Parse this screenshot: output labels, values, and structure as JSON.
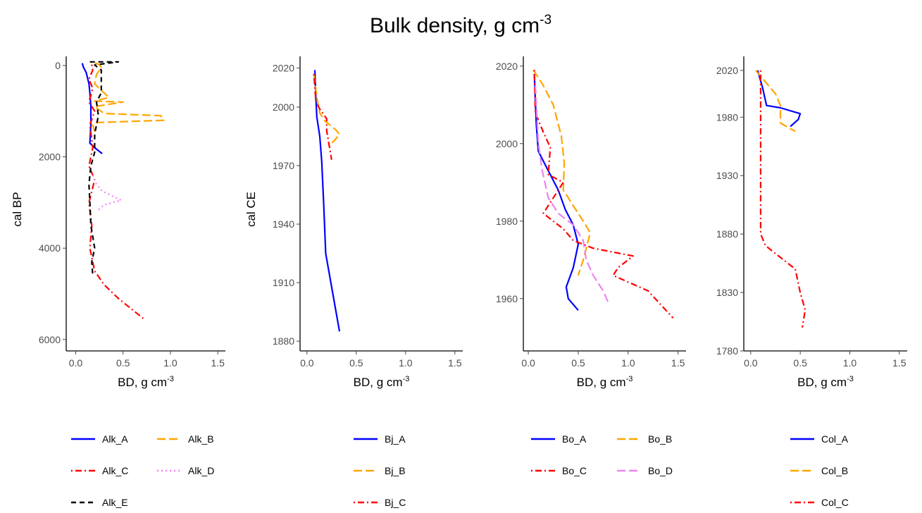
{
  "figure_title": {
    "main": "Bulk density, g cm",
    "sup": "-3"
  },
  "chart_data": [
    {
      "type": "line",
      "title": "",
      "xlabel": {
        "main": "BD, g cm",
        "sup": "-3"
      },
      "ylabel": "cal BP",
      "xlim": [
        -0.1,
        1.58
      ],
      "ylim": [
        -200,
        6250
      ],
      "y_reversed": true,
      "x_ticks": [
        0.0,
        0.5,
        1.0,
        1.5
      ],
      "x_tick_labels": [
        "0.0",
        "0.5",
        "1.0",
        "1.5"
      ],
      "y_ticks": [
        0,
        2000,
        4000,
        6000
      ],
      "y_tick_labels": [
        "0",
        "2000",
        "4000",
        "6000"
      ],
      "legend_columns": 2,
      "series": [
        {
          "name": "Alk_A",
          "color": "#0000ff",
          "dash": "solid",
          "points": [
            [
              0.07,
              -50
            ],
            [
              0.08,
              30
            ],
            [
              0.11,
              150
            ],
            [
              0.14,
              400
            ],
            [
              0.15,
              600
            ],
            [
              0.16,
              900
            ],
            [
              0.16,
              1300
            ],
            [
              0.15,
              1700
            ],
            [
              0.2,
              1800
            ],
            [
              0.28,
              1930
            ]
          ]
        },
        {
          "name": "Alk_B",
          "color": "#ffa500",
          "dash": "longdash",
          "points": [
            [
              0.2,
              -60
            ],
            [
              0.25,
              -20
            ],
            [
              0.27,
              40
            ],
            [
              0.22,
              200
            ],
            [
              0.2,
              400
            ],
            [
              0.35,
              700
            ],
            [
              0.2,
              780
            ],
            [
              0.5,
              800
            ],
            [
              0.2,
              900
            ],
            [
              0.3,
              1050
            ],
            [
              0.9,
              1100
            ],
            [
              0.93,
              1200
            ],
            [
              0.2,
              1250
            ],
            [
              0.18,
              1300
            ],
            [
              0.2,
              1450
            ]
          ]
        },
        {
          "name": "Alk_C",
          "color": "#ff0000",
          "dash": "dotdash",
          "points": [
            [
              0.17,
              -20
            ],
            [
              0.18,
              100
            ],
            [
              0.14,
              300
            ],
            [
              0.18,
              500
            ],
            [
              0.14,
              800
            ],
            [
              0.2,
              1000
            ],
            [
              0.15,
              1300
            ],
            [
              0.18,
              1800
            ],
            [
              0.14,
              2200
            ],
            [
              0.2,
              2500
            ],
            [
              0.14,
              3000
            ],
            [
              0.17,
              3500
            ],
            [
              0.15,
              4000
            ],
            [
              0.2,
              4500
            ],
            [
              0.3,
              4800
            ],
            [
              0.45,
              5100
            ],
            [
              0.6,
              5350
            ],
            [
              0.72,
              5550
            ]
          ]
        },
        {
          "name": "Alk_D",
          "color": "#ee82ee",
          "dash": "dotted",
          "points": [
            [
              0.18,
              2400
            ],
            [
              0.22,
              2600
            ],
            [
              0.28,
              2750
            ],
            [
              0.48,
              2950
            ],
            [
              0.3,
              3050
            ],
            [
              0.22,
              3200
            ]
          ]
        },
        {
          "name": "Alk_E",
          "color": "#000000",
          "dash": "dashed",
          "points": [
            [
              0.15,
              -80
            ],
            [
              0.45,
              -80
            ],
            [
              0.3,
              -40
            ],
            [
              0.2,
              -10
            ],
            [
              0.27,
              100
            ],
            [
              0.27,
              600
            ],
            [
              0.22,
              800
            ],
            [
              0.24,
              1100
            ],
            [
              0.2,
              1500
            ],
            [
              0.2,
              1900
            ],
            [
              0.16,
              2200
            ],
            [
              0.14,
              2600
            ],
            [
              0.15,
              3000
            ],
            [
              0.16,
              3500
            ],
            [
              0.2,
              4000
            ],
            [
              0.17,
              4300
            ],
            [
              0.18,
              4600
            ]
          ]
        }
      ]
    },
    {
      "type": "line",
      "title": "",
      "xlabel": {
        "main": "BD, g cm",
        "sup": "-3"
      },
      "ylabel": "cal CE",
      "xlim": [
        -0.07,
        1.58
      ],
      "ylim": [
        1875,
        2026
      ],
      "y_reversed": false,
      "x_ticks": [
        0.0,
        0.5,
        1.0,
        1.5
      ],
      "x_tick_labels": [
        "0.0",
        "0.5",
        "1.0",
        "1.5"
      ],
      "y_ticks": [
        1880,
        1910,
        1940,
        1970,
        2000,
        2020
      ],
      "y_tick_labels": [
        "1880",
        "1910",
        "1940",
        "1970",
        "2000",
        "2020"
      ],
      "legend_columns": 1,
      "series": [
        {
          "name": "Bj_A",
          "color": "#0000ff",
          "dash": "solid",
          "points": [
            [
              0.08,
              2019
            ],
            [
              0.09,
              2005
            ],
            [
              0.1,
              1995
            ],
            [
              0.13,
              1985
            ],
            [
              0.15,
              1972
            ],
            [
              0.17,
              1950
            ],
            [
              0.19,
              1925
            ],
            [
              0.26,
              1905
            ],
            [
              0.33,
              1885
            ]
          ]
        },
        {
          "name": "Bj_B",
          "color": "#ffa500",
          "dash": "longdash",
          "points": [
            [
              0.07,
              2017
            ],
            [
              0.1,
              2005
            ],
            [
              0.13,
              1997
            ],
            [
              0.18,
              1993
            ],
            [
              0.3,
              1988
            ],
            [
              0.33,
              1986
            ],
            [
              0.28,
              1983
            ],
            [
              0.22,
              1980
            ]
          ]
        },
        {
          "name": "Bj_C",
          "color": "#ff0000",
          "dash": "dotdash",
          "points": [
            [
              0.07,
              2017
            ],
            [
              0.08,
              2010
            ],
            [
              0.09,
              2003
            ],
            [
              0.13,
              1999
            ],
            [
              0.2,
              1994
            ],
            [
              0.2,
              1988
            ],
            [
              0.24,
              1976
            ],
            [
              0.25,
              1973
            ]
          ]
        }
      ]
    },
    {
      "type": "line",
      "title": "",
      "xlabel": {
        "main": "BD, g cm",
        "sup": "-3"
      },
      "ylabel": "",
      "xlim": [
        -0.05,
        1.58
      ],
      "ylim": [
        1946.5,
        2022.5
      ],
      "y_reversed": false,
      "x_ticks": [
        0.0,
        0.5,
        1.0,
        1.5
      ],
      "x_tick_labels": [
        "0.0",
        "0.5",
        "1.0",
        "1.5"
      ],
      "y_ticks": [
        1960,
        1980,
        2000,
        2020
      ],
      "y_tick_labels": [
        "1960",
        "1980",
        "2000",
        "2020"
      ],
      "legend_columns": 2,
      "series": [
        {
          "name": "Bo_A",
          "color": "#0000ff",
          "dash": "solid",
          "points": [
            [
              0.06,
              2018
            ],
            [
              0.08,
              2005
            ],
            [
              0.1,
              1998
            ],
            [
              0.2,
              1993
            ],
            [
              0.3,
              1988
            ],
            [
              0.37,
              1983
            ],
            [
              0.45,
              1979
            ],
            [
              0.5,
              1974
            ],
            [
              0.45,
              1968
            ],
            [
              0.38,
              1963
            ],
            [
              0.4,
              1960
            ],
            [
              0.5,
              1957
            ]
          ]
        },
        {
          "name": "Bo_B",
          "color": "#ffa500",
          "dash": "longdash",
          "points": [
            [
              0.05,
              2019
            ],
            [
              0.15,
              2015
            ],
            [
              0.25,
              2010
            ],
            [
              0.33,
              2002
            ],
            [
              0.36,
              1995
            ],
            [
              0.35,
              1988
            ],
            [
              0.45,
              1984
            ],
            [
              0.55,
              1980
            ],
            [
              0.62,
              1977
            ],
            [
              0.55,
              1970
            ],
            [
              0.5,
              1966
            ]
          ]
        },
        {
          "name": "Bo_C",
          "color": "#ff0000",
          "dash": "dotdash",
          "points": [
            [
              0.06,
              2019
            ],
            [
              0.07,
              2008
            ],
            [
              0.15,
              2003
            ],
            [
              0.22,
              1999
            ],
            [
              0.2,
              1992
            ],
            [
              0.35,
              1990
            ],
            [
              0.25,
              1986
            ],
            [
              0.15,
              1982
            ],
            [
              0.35,
              1978
            ],
            [
              0.45,
              1975
            ],
            [
              0.65,
              1973
            ],
            [
              1.05,
              1971
            ],
            [
              0.9,
              1968
            ],
            [
              0.85,
              1966
            ],
            [
              1.2,
              1962
            ],
            [
              1.45,
              1955
            ]
          ]
        },
        {
          "name": "Bo_D",
          "color": "#ee82ee",
          "dash": "longdash",
          "points": [
            [
              0.07,
              2015
            ],
            [
              0.1,
              2000
            ],
            [
              0.14,
              1993
            ],
            [
              0.2,
              1986
            ],
            [
              0.3,
              1982
            ],
            [
              0.45,
              1979
            ],
            [
              0.55,
              1975
            ],
            [
              0.58,
              1970
            ],
            [
              0.65,
              1966
            ],
            [
              0.75,
              1962
            ],
            [
              0.8,
              1959
            ]
          ]
        }
      ]
    },
    {
      "type": "line",
      "title": "",
      "xlabel": {
        "main": "BD, g cm",
        "sup": "-3"
      },
      "ylabel": "",
      "xlim": [
        -0.07,
        1.58
      ],
      "ylim": [
        1780,
        2032
      ],
      "y_reversed": false,
      "x_ticks": [
        0.0,
        0.5,
        1.0,
        1.5
      ],
      "x_tick_labels": [
        "0.0",
        "0.5",
        "1.0",
        "1.5"
      ],
      "y_ticks": [
        1780,
        1830,
        1880,
        1930,
        1980,
        2020
      ],
      "y_tick_labels": [
        "1780",
        "1830",
        "1880",
        "1930",
        "1980",
        "2020"
      ],
      "legend_columns": 1,
      "series": [
        {
          "name": "Col_A",
          "color": "#0000ff",
          "dash": "solid",
          "points": [
            [
              0.07,
              2020
            ],
            [
              0.12,
              2005
            ],
            [
              0.16,
              1990
            ],
            [
              0.3,
              1988
            ],
            [
              0.5,
              1983
            ],
            [
              0.48,
              1978
            ],
            [
              0.4,
              1972
            ]
          ]
        },
        {
          "name": "Col_B",
          "color": "#ffa500",
          "dash": "longdash",
          "points": [
            [
              0.05,
              2020
            ],
            [
              0.15,
              2010
            ],
            [
              0.25,
              2000
            ],
            [
              0.3,
              1990
            ],
            [
              0.3,
              1975
            ],
            [
              0.4,
              1970
            ],
            [
              0.45,
              1968
            ]
          ]
        },
        {
          "name": "Col_C",
          "color": "#ff0000",
          "dash": "dotdash",
          "points": [
            [
              0.1,
              2020
            ],
            [
              0.1,
              2010
            ],
            [
              0.1,
              1990
            ],
            [
              0.1,
              1940
            ],
            [
              0.1,
              1880
            ],
            [
              0.15,
              1870
            ],
            [
              0.3,
              1860
            ],
            [
              0.45,
              1850
            ],
            [
              0.5,
              1830
            ],
            [
              0.55,
              1815
            ],
            [
              0.52,
              1800
            ]
          ]
        }
      ]
    }
  ]
}
